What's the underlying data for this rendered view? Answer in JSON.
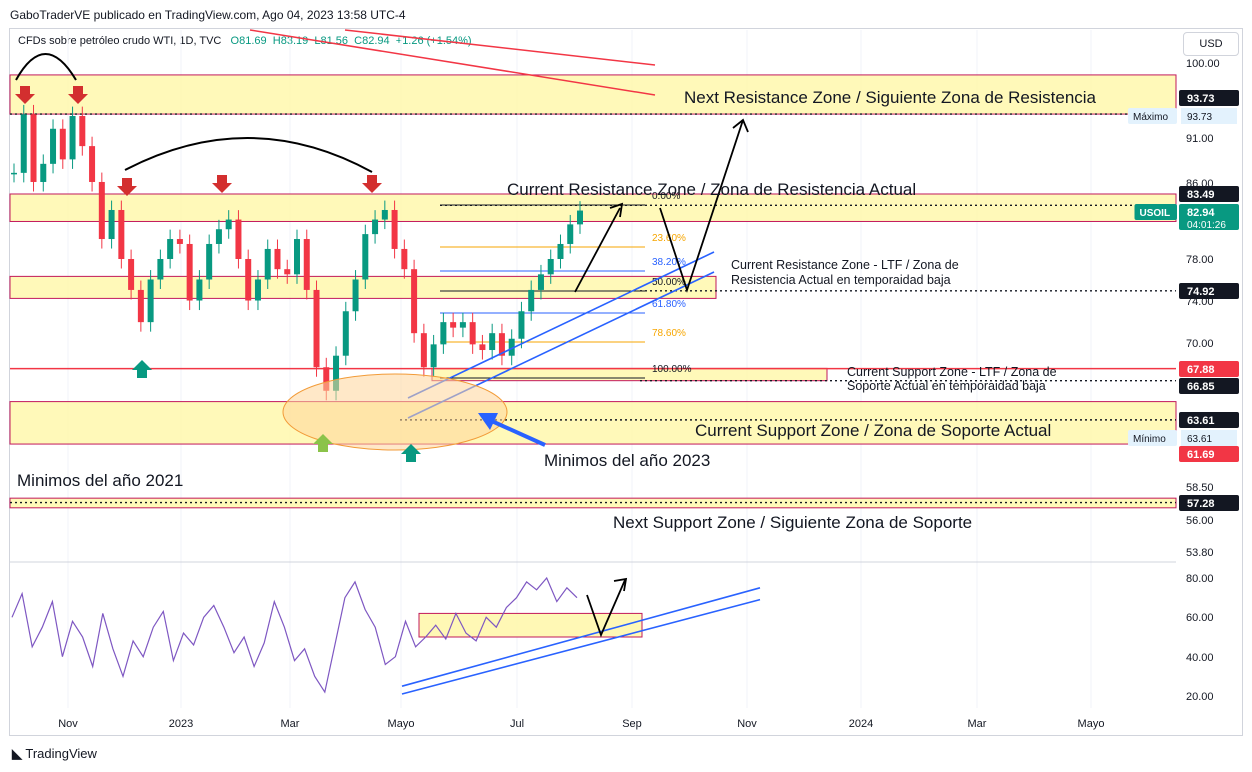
{
  "header": {
    "published": "GaboTraderVE publicado en TradingView.com, Ago 04, 2023 13:58 UTC-4",
    "symbol": "CFDs sobre petróleo crudo WTI, 1D, TVC",
    "ohlc": {
      "o": "O81.69",
      "h": "H83.19",
      "l": "L81.56",
      "c": "C82.94",
      "change": "+1.26 (+1.54%)"
    },
    "currency_button": "USD"
  },
  "footer": {
    "brand": "TradingView"
  },
  "colors": {
    "zone_fill": "#fff7a8",
    "zone_border": "#c2185b",
    "up": "#089981",
    "down": "#f23645",
    "rsi": "#7e57c2",
    "channel": "#2962ff"
  },
  "chart_data": [
    {
      "type": "candlestick",
      "title": "CFDs sobre petróleo crudo WTI, 1D, TVC",
      "x_ticks": [
        "Nov",
        "2023",
        "Mar",
        "Mayo",
        "Jul",
        "Sep",
        "Nov",
        "2024",
        "Mar",
        "Mayo"
      ],
      "y_ticks": [
        "100.00",
        "91.00",
        "86.00",
        "78.00",
        "74.00",
        "70.00",
        "58.50",
        "56.00",
        "53.80"
      ],
      "y_scale": "log",
      "ylim": [
        52.5,
        104
      ],
      "price_labels": [
        {
          "value": "93.73",
          "tag": "Máximo"
        },
        {
          "value": "83.49"
        },
        {
          "value": "82.94",
          "tag": "USOIL",
          "sub": "04:01:26"
        },
        {
          "value": "74.92"
        },
        {
          "value": "67.88"
        },
        {
          "value": "66.85"
        },
        {
          "value": "63.61",
          "tag": "Mínimo"
        },
        {
          "value": "61.69"
        },
        {
          "value": "57.28"
        }
      ],
      "zones": [
        {
          "label": "Next Resistance Zone / Siguiente Zona de Resistencia",
          "low": 93.73,
          "high": 98.5
        },
        {
          "label": "Current Resistance Zone  / Zona de Resistencia Actual",
          "low": 81.8,
          "high": 84.7
        },
        {
          "label": "Current Resistance Zone - LTF  / Zona de Resistencia Actual en temporaidad baja",
          "low": 74.2,
          "high": 76.3
        },
        {
          "label": "Current  Support Zone - LTF  / Zona de Soporte Actual en temporaidad baja",
          "low": 66.85,
          "high": 67.9
        },
        {
          "label": "Current Support Zone  / Zona de Soporte Actual",
          "low": 61.69,
          "high": 65.1
        },
        {
          "label": "Next Support Zone  / Siguiente Zona de Soporte",
          "low": 56.9,
          "high": 57.6
        }
      ],
      "fibonacci": [
        "0.00%",
        "23.60%",
        "38.20%",
        "50.00%",
        "61.80%",
        "78.60%",
        "100.00%"
      ],
      "annotations": [
        "Minimos del año 2021",
        "Minimos del año 2023"
      ],
      "series": [
        {
          "name": "USOIL",
          "points": [
            [
              "Oct",
              87.0
            ],
            [
              "Oct",
              93.7
            ],
            [
              "Oct",
              86.0
            ],
            [
              "Oct",
              88.0
            ],
            [
              "Oct",
              92.0
            ],
            [
              "Nov",
              88.5
            ],
            [
              "Nov",
              93.5
            ],
            [
              "Nov",
              90.0
            ],
            [
              "Nov",
              86.0
            ],
            [
              "Nov",
              80.0
            ],
            [
              "Nov",
              83.0
            ],
            [
              "Nov",
              78.0
            ],
            [
              "Dic",
              75.0
            ],
            [
              "Dic",
              72.0
            ],
            [
              "Dic",
              76.0
            ],
            [
              "Dic",
              78.0
            ],
            [
              "Dic",
              80.0
            ],
            [
              "2023",
              79.5
            ],
            [
              "2023",
              74.0
            ],
            [
              "2023",
              76.0
            ],
            [
              "Ene",
              79.5
            ],
            [
              "Ene",
              81.0
            ],
            [
              "Ene",
              82.0
            ],
            [
              "Feb",
              78.0
            ],
            [
              "Feb",
              74.0
            ],
            [
              "Feb",
              76.0
            ],
            [
              "Feb",
              79.0
            ],
            [
              "Feb",
              77.0
            ],
            [
              "Mar",
              76.5
            ],
            [
              "Mar",
              80.0
            ],
            [
              "Mar",
              75.0
            ],
            [
              "Mar",
              68.0
            ],
            [
              "Mar",
              66.0
            ],
            [
              "Mar",
              69.0
            ],
            [
              "Mar",
              73.0
            ],
            [
              "Abr",
              76.0
            ],
            [
              "Abr",
              80.5
            ],
            [
              "Abr",
              82.0
            ],
            [
              "Abr",
              83.0
            ],
            [
              "Abr",
              79.0
            ],
            [
              "Abr",
              77.0
            ],
            [
              "Mayo",
              71.0
            ],
            [
              "Mayo",
              68.0
            ],
            [
              "Mayo",
              70.0
            ],
            [
              "Mayo",
              72.0
            ],
            [
              "Mayo",
              71.5
            ],
            [
              "Jun",
              72.0
            ],
            [
              "Jun",
              70.0
            ],
            [
              "Jun",
              69.5
            ],
            [
              "Jun",
              71.0
            ],
            [
              "Jun",
              69.0
            ],
            [
              "Jul",
              70.5
            ],
            [
              "Jul",
              73.0
            ],
            [
              "Jul",
              75.0
            ],
            [
              "Jul",
              76.5
            ],
            [
              "Jul",
              78.0
            ],
            [
              "Jul",
              79.5
            ],
            [
              "Ago",
              81.5
            ],
            [
              "Ago",
              82.94
            ]
          ]
        }
      ]
    },
    {
      "type": "line",
      "title": "RSI",
      "y_ticks": [
        "80.00",
        "60.00",
        "40.00",
        "20.00"
      ],
      "ylim": [
        15,
        85
      ],
      "series": [
        {
          "name": "RSI",
          "values": [
            60,
            72,
            45,
            55,
            68,
            40,
            58,
            50,
            35,
            62,
            44,
            30,
            48,
            40,
            55,
            63,
            38,
            52,
            46,
            60,
            66,
            55,
            42,
            50,
            35,
            47,
            68,
            55,
            38,
            44,
            30,
            22,
            46,
            70,
            78,
            64,
            55,
            36,
            40,
            58,
            45,
            50,
            56,
            49,
            62,
            52,
            48,
            60,
            55,
            65,
            70,
            78,
            74,
            80,
            68,
            75,
            70
          ]
        }
      ]
    }
  ]
}
